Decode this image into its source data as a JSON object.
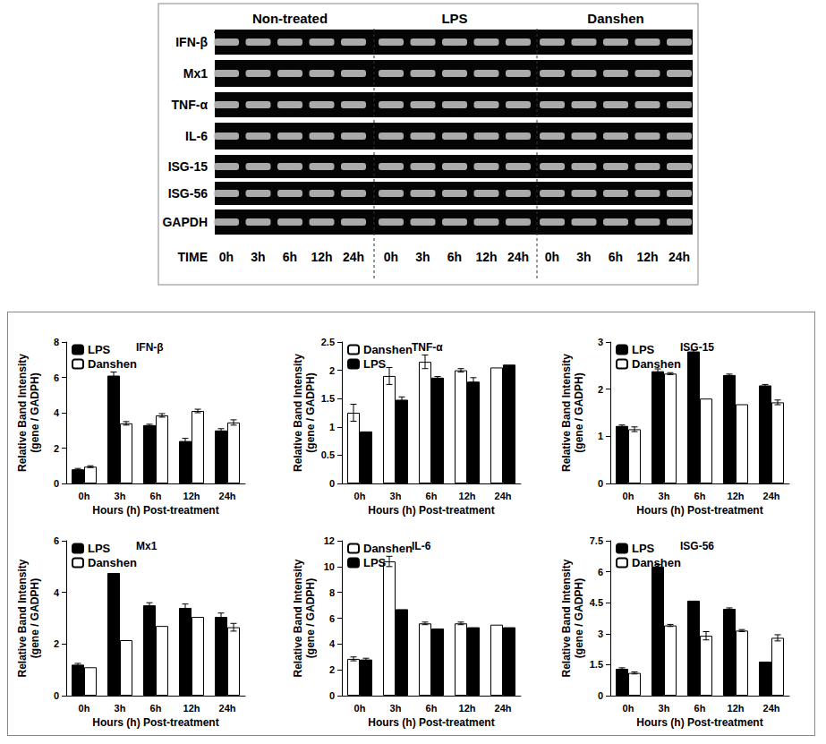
{
  "gel": {
    "groups": [
      "Non-treated",
      "LPS",
      "Danshen"
    ],
    "genes": [
      "IFN-β",
      "Mx1",
      "TNF-α",
      "IL-6",
      "ISG-15",
      "ISG-56",
      "GAPDH"
    ],
    "time_label": "TIME",
    "times": [
      "0h",
      "3h",
      "6h",
      "12h",
      "24h"
    ]
  },
  "chart_data": [
    {
      "type": "bar",
      "title": "IFN-β",
      "categories": [
        "0h",
        "3h",
        "6h",
        "12h",
        "24h"
      ],
      "xlabel": "Hours (h) Post-treatment",
      "ylabel": "Relative Band Intensity\n(gene / GADPH)",
      "ylim": [
        0,
        8
      ],
      "yticks": [
        0,
        2,
        4,
        6,
        8
      ],
      "grid": false,
      "legend": "upper left",
      "series": [
        {
          "name": "LPS",
          "color": "#000000",
          "values": [
            0.8,
            6.1,
            3.3,
            2.4,
            3.0
          ],
          "errors": [
            0.05,
            0.2,
            0.05,
            0.15,
            0.1
          ]
        },
        {
          "name": "Danshen",
          "color": "#ffffff",
          "values": [
            0.95,
            3.4,
            3.85,
            4.1,
            3.45
          ],
          "errors": [
            0.05,
            0.1,
            0.1,
            0.1,
            0.15
          ]
        }
      ]
    },
    {
      "type": "bar",
      "title": "TNF-α",
      "categories": [
        "0h",
        "3h",
        "6h",
        "12h",
        "24h"
      ],
      "xlabel": "Hours (h) Post-treatment",
      "ylabel": "Relative Band Intensity\n(gene / GADPH)",
      "ylim": [
        0,
        2.5
      ],
      "yticks": [
        0,
        0.5,
        1,
        1.5,
        2,
        2.5
      ],
      "grid": false,
      "legend": "upper left",
      "series": [
        {
          "name": "Danshen",
          "color": "#ffffff",
          "values": [
            1.25,
            1.9,
            2.15,
            2.0,
            2.05
          ],
          "errors": [
            0.15,
            0.15,
            0.12,
            0.03,
            0
          ]
        },
        {
          "name": "LPS",
          "color": "#000000",
          "values": [
            0.92,
            1.48,
            1.87,
            1.8,
            2.1
          ],
          "errors": [
            0,
            0.05,
            0.02,
            0.07,
            0
          ]
        }
      ]
    },
    {
      "type": "bar",
      "title": "ISG-15",
      "categories": [
        "0h",
        "3h",
        "6h",
        "12h",
        "24h"
      ],
      "xlabel": "Hours (h) Post-treatment",
      "ylabel": "Relative Band Intensity\n(gene / GADPH)",
      "ylim": [
        0,
        3
      ],
      "yticks": [
        0,
        1,
        2,
        3
      ],
      "grid": false,
      "legend": "upper left",
      "series": [
        {
          "name": "LPS",
          "color": "#000000",
          "values": [
            1.22,
            2.38,
            2.8,
            2.3,
            2.08
          ],
          "errors": [
            0.02,
            0.05,
            0.03,
            0.02,
            0.02
          ]
        },
        {
          "name": "Danshen",
          "color": "#ffffff",
          "values": [
            1.15,
            2.33,
            1.8,
            1.68,
            1.72
          ],
          "errors": [
            0.05,
            0.02,
            0,
            0,
            0.05
          ]
        }
      ]
    },
    {
      "type": "bar",
      "title": "Mx1",
      "categories": [
        "0h",
        "3h",
        "6h",
        "12h",
        "24h"
      ],
      "xlabel": "Hours (h) Post-treatment",
      "ylabel": "Relative Band Intensity\n(gene / GADPH)",
      "ylim": [
        0,
        6
      ],
      "yticks": [
        0,
        2,
        4,
        6
      ],
      "grid": false,
      "legend": "upper left",
      "series": [
        {
          "name": "LPS",
          "color": "#000000",
          "values": [
            1.2,
            4.75,
            3.5,
            3.4,
            3.05
          ],
          "errors": [
            0.05,
            0,
            0.1,
            0.15,
            0.15
          ]
        },
        {
          "name": "Danshen",
          "color": "#ffffff",
          "values": [
            1.1,
            2.15,
            2.7,
            3.05,
            2.65
          ],
          "errors": [
            0,
            0,
            0,
            0,
            0.15
          ]
        }
      ]
    },
    {
      "type": "bar",
      "title": "IL-6",
      "categories": [
        "0h",
        "3h",
        "6h",
        "12h",
        "24h"
      ],
      "xlabel": "Hours (h) Post-treatment",
      "ylabel": "Relative Band Intensity\n(gene / GADPH)",
      "ylim": [
        0,
        12
      ],
      "yticks": [
        0,
        2,
        4,
        6,
        8,
        10,
        12
      ],
      "grid": false,
      "legend": "upper left",
      "series": [
        {
          "name": "Danshen",
          "color": "#ffffff",
          "values": [
            2.85,
            10.4,
            5.6,
            5.6,
            5.5
          ],
          "errors": [
            0.15,
            0.4,
            0.1,
            0.1,
            0
          ]
        },
        {
          "name": "LPS",
          "color": "#000000",
          "values": [
            2.8,
            6.7,
            5.2,
            5.3,
            5.3
          ],
          "errors": [
            0.1,
            0,
            0,
            0,
            0
          ]
        }
      ]
    },
    {
      "type": "bar",
      "title": "ISG-56",
      "categories": [
        "0h",
        "3h",
        "6h",
        "12h",
        "24h"
      ],
      "xlabel": "Hours (h) Post-treatment",
      "ylabel": "Relative Band Intensity\n(gene / GADPH)",
      "ylim": [
        0,
        7.5
      ],
      "yticks": [
        0,
        1.5,
        3,
        4.5,
        6,
        7.5
      ],
      "grid": false,
      "legend": "upper left",
      "series": [
        {
          "name": "LPS",
          "color": "#000000",
          "values": [
            1.3,
            6.25,
            4.6,
            4.2,
            1.65
          ],
          "errors": [
            0.05,
            0.1,
            0,
            0.05,
            0
          ]
        },
        {
          "name": "Danshen",
          "color": "#ffffff",
          "values": [
            1.1,
            3.4,
            2.9,
            3.15,
            2.8
          ],
          "errors": [
            0.05,
            0.05,
            0.2,
            0.05,
            0.15
          ]
        }
      ]
    }
  ]
}
